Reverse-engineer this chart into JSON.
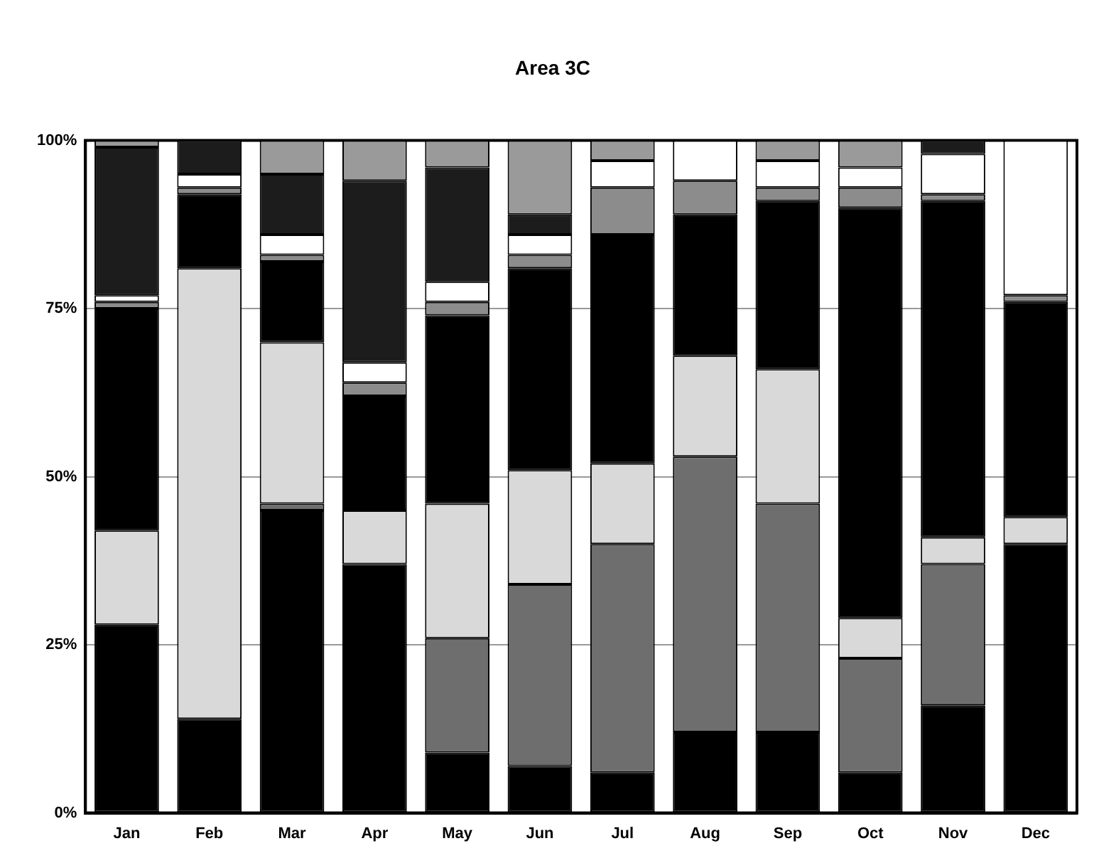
{
  "chart_data": {
    "type": "bar",
    "title": "Area 3C",
    "stacked": true,
    "grid": "y",
    "categories": [
      "Jan",
      "Feb",
      "Mar",
      "Apr",
      "May",
      "Jun",
      "Jul",
      "Aug",
      "Sep",
      "Oct",
      "Nov",
      "Dec"
    ],
    "ylim": [
      0,
      100
    ],
    "yticks": [
      {
        "value": 0,
        "label": "0%"
      },
      {
        "value": 25,
        "label": "25%"
      },
      {
        "value": 50,
        "label": "50%"
      },
      {
        "value": 75,
        "label": "75%"
      },
      {
        "value": 100,
        "label": "100%"
      }
    ],
    "series": [
      {
        "color": "#000000",
        "values": [
          28,
          14,
          45,
          37,
          9,
          7,
          6,
          12,
          12,
          6,
          16,
          40
        ]
      },
      {
        "color": "#6e6e6e",
        "values": [
          null,
          null,
          1,
          null,
          17,
          27,
          34,
          41,
          34,
          17,
          21,
          null
        ]
      },
      {
        "color": "#d9d9d9",
        "values": [
          14,
          67,
          24,
          8,
          20,
          17,
          12,
          15,
          20,
          6,
          4,
          4
        ]
      },
      {
        "color": "#000000",
        "values": [
          33,
          11,
          12,
          17,
          28,
          30,
          34,
          21,
          25,
          61,
          50,
          32
        ]
      },
      {
        "color": "#8c8c8c",
        "values": [
          1,
          1,
          1,
          2,
          2,
          2,
          7,
          5,
          2,
          3,
          1,
          1
        ]
      },
      {
        "color": "#ffffff",
        "values": [
          1,
          2,
          3,
          3,
          3,
          3,
          4,
          6,
          4,
          3,
          6,
          23
        ]
      },
      {
        "color": "#1c1c1c",
        "values": [
          22,
          5,
          9,
          27,
          17,
          3,
          null,
          null,
          null,
          null,
          2,
          null
        ]
      },
      {
        "color": "#9a9a9a",
        "values": [
          1,
          null,
          5,
          6,
          4,
          11,
          3,
          null,
          3,
          4,
          null,
          null
        ]
      }
    ]
  }
}
